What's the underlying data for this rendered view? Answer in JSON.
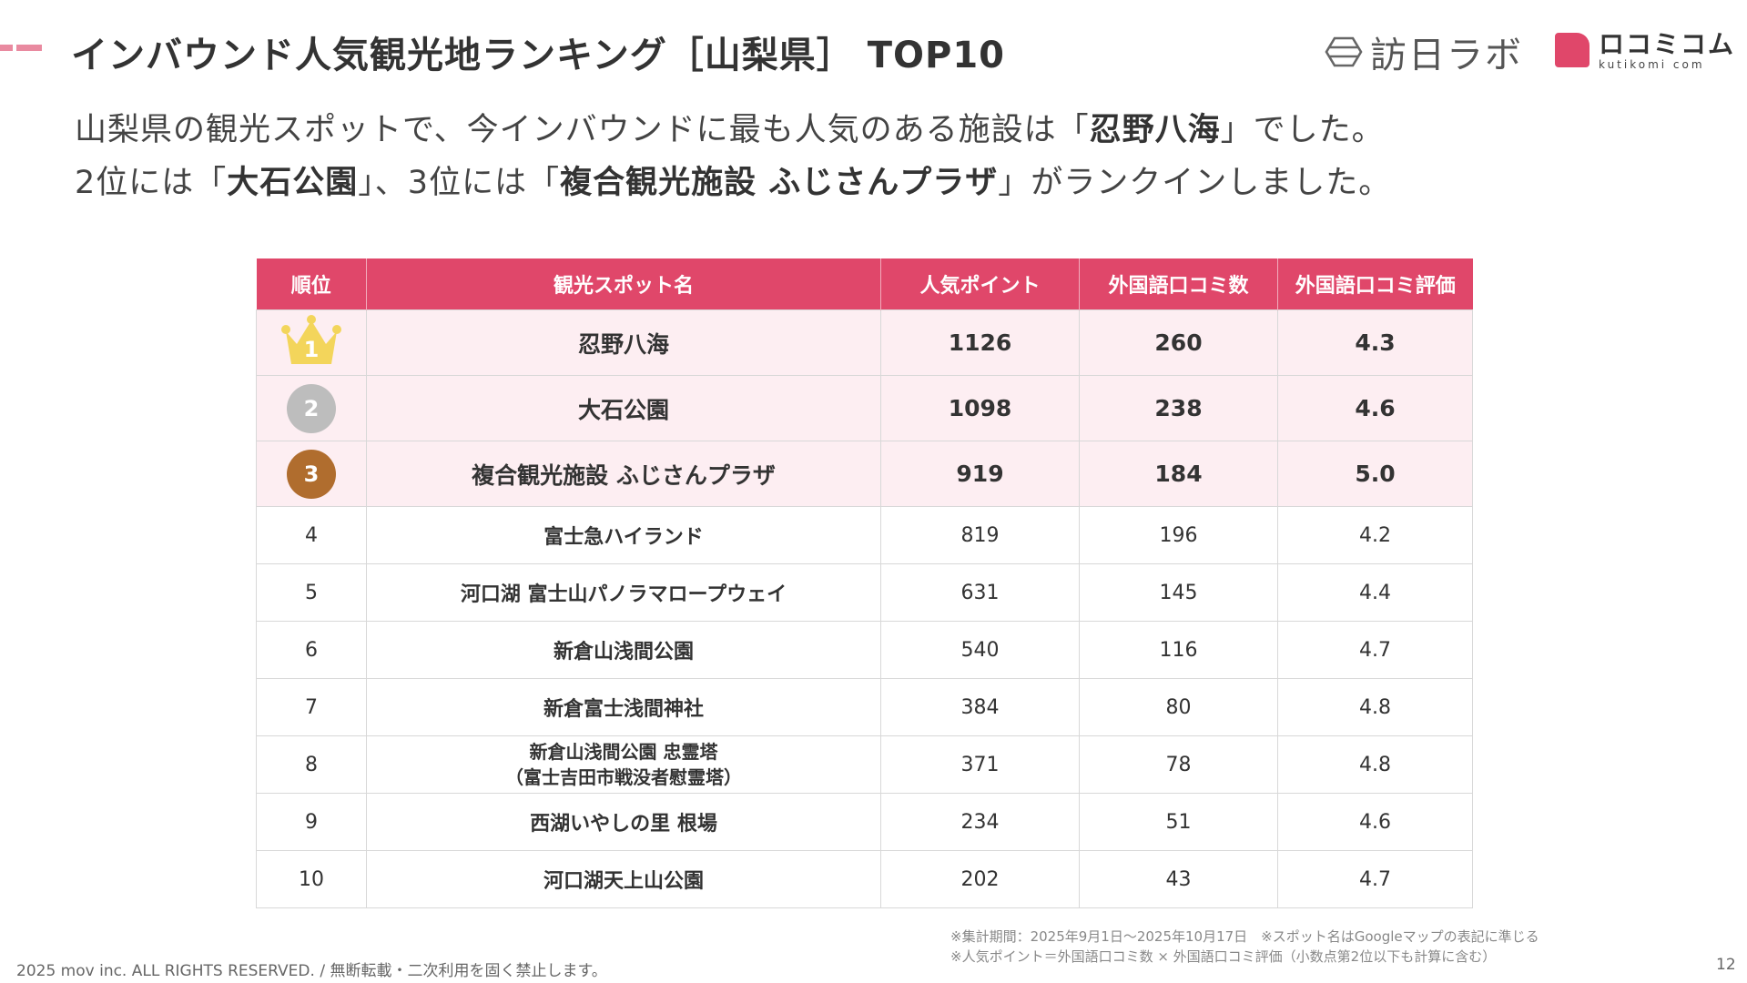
{
  "header": {
    "title": "インバウンド人気観光地ランキング［山梨県］ TOP10",
    "logo_houjin": "訪日ラボ",
    "logo_kutikomi_jp": "ロコミコム",
    "logo_kutikomi_en": "kutikomi com"
  },
  "lead": {
    "line1_pre": "山梨県の観光スポットで、今インバウンドに最も人気のある施設は「",
    "line1_bold": "忍野八海",
    "line1_post": "」でした。",
    "line2_pre": "2位には「",
    "line2_bold1": "大石公園",
    "line2_mid": "」、3位には「",
    "line2_bold2": "複合観光施設 ふじさんプラザ",
    "line2_post": "」がランクインしました。"
  },
  "table": {
    "headers": [
      "順位",
      "観光スポット名",
      "人気ポイント",
      "外国語口コミ数",
      "外国語口コミ評価"
    ],
    "rows": [
      {
        "rank": "1",
        "name": "忍野八海",
        "name2": "",
        "points": "1126",
        "reviews": "260",
        "rating": "4.3"
      },
      {
        "rank": "2",
        "name": "大石公園",
        "name2": "",
        "points": "1098",
        "reviews": "238",
        "rating": "4.6"
      },
      {
        "rank": "3",
        "name": "複合観光施設 ふじさんプラザ",
        "name2": "",
        "points": "919",
        "reviews": "184",
        "rating": "5.0"
      },
      {
        "rank": "4",
        "name": "富士急ハイランド",
        "name2": "",
        "points": "819",
        "reviews": "196",
        "rating": "4.2"
      },
      {
        "rank": "5",
        "name": "河口湖 富士山パノラマロープウェイ",
        "name2": "",
        "points": "631",
        "reviews": "145",
        "rating": "4.4"
      },
      {
        "rank": "6",
        "name": "新倉山浅間公園",
        "name2": "",
        "points": "540",
        "reviews": "116",
        "rating": "4.7"
      },
      {
        "rank": "7",
        "name": "新倉富士浅間神社",
        "name2": "",
        "points": "384",
        "reviews": "80",
        "rating": "4.8"
      },
      {
        "rank": "8",
        "name": "新倉山浅間公園 忠霊塔",
        "name2": "（富士吉田市戦没者慰霊塔）",
        "points": "371",
        "reviews": "78",
        "rating": "4.8"
      },
      {
        "rank": "9",
        "name": "西湖いやしの里 根場",
        "name2": "",
        "points": "234",
        "reviews": "51",
        "rating": "4.6"
      },
      {
        "rank": "10",
        "name": "河口湖天上山公園",
        "name2": "",
        "points": "202",
        "reviews": "43",
        "rating": "4.7"
      }
    ]
  },
  "notes": {
    "line1": "※集計期間：2025年9月1日〜2025年10月17日　※スポット名はGoogleマップの表記に準じる",
    "line2": "※人気ポイント＝外国語口コミ数 × 外国語口コミ評価（小数点第2位以下も計算に含む）"
  },
  "footer": {
    "copyright": "2025 mov inc. ALL RIGHTS RESERVED. / 無断転載・二次利用を固く禁止します。",
    "page_number": "12"
  },
  "colors": {
    "accent": "#e0476a",
    "accent_light": "#e98aa0",
    "top_row_bg": "#fdeef2",
    "gold": "#f3d55b",
    "silver": "#bdbdbd",
    "bronze": "#b06d2e"
  },
  "icons": {
    "crown": "crown-icon",
    "houjin_logo": "hexagon-logo-icon",
    "kutikomi_logo": "speech-bubble-logo-icon"
  }
}
